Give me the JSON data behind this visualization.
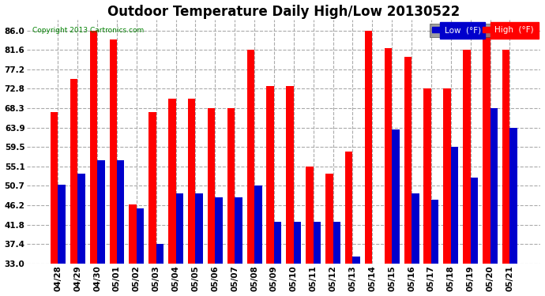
{
  "title": "Outdoor Temperature Daily High/Low 20130522",
  "copyright": "Copyright 2013 Cartronics.com",
  "legend_low_label": "Low  (°F)",
  "legend_high_label": "High  (°F)",
  "categories": [
    "04/28",
    "04/29",
    "04/30",
    "05/01",
    "05/02",
    "05/03",
    "05/04",
    "05/05",
    "05/06",
    "05/07",
    "05/08",
    "05/09",
    "05/10",
    "05/11",
    "05/12",
    "05/13",
    "05/14",
    "05/15",
    "05/16",
    "05/17",
    "05/18",
    "05/19",
    "05/20",
    "05/21"
  ],
  "high": [
    67.5,
    75.0,
    86.0,
    84.0,
    46.5,
    67.5,
    70.5,
    70.5,
    68.3,
    68.3,
    81.6,
    73.5,
    73.5,
    55.0,
    53.5,
    58.5,
    86.0,
    82.0,
    80.0,
    72.8,
    72.8,
    81.6,
    86.0,
    81.6
  ],
  "low": [
    51.0,
    53.5,
    56.5,
    56.5,
    45.5,
    37.4,
    49.0,
    49.0,
    48.0,
    48.0,
    50.7,
    42.5,
    42.5,
    42.5,
    42.5,
    34.5,
    33.0,
    63.5,
    49.0,
    47.5,
    59.5,
    52.5,
    68.3,
    63.9
  ],
  "ylim_min": 33.0,
  "ylim_max": 88.5,
  "yticks": [
    33.0,
    37.4,
    41.8,
    46.2,
    50.7,
    55.1,
    59.5,
    63.9,
    68.3,
    72.8,
    77.2,
    81.6,
    86.0
  ],
  "bar_width": 0.38,
  "high_color": "#ff0000",
  "low_color": "#0000cc",
  "bg_color": "#ffffff",
  "grid_color": "#aaaaaa",
  "title_fontsize": 12,
  "tick_fontsize": 7.5,
  "legend_low_bg": "#0000cc",
  "legend_high_bg": "#ff0000"
}
